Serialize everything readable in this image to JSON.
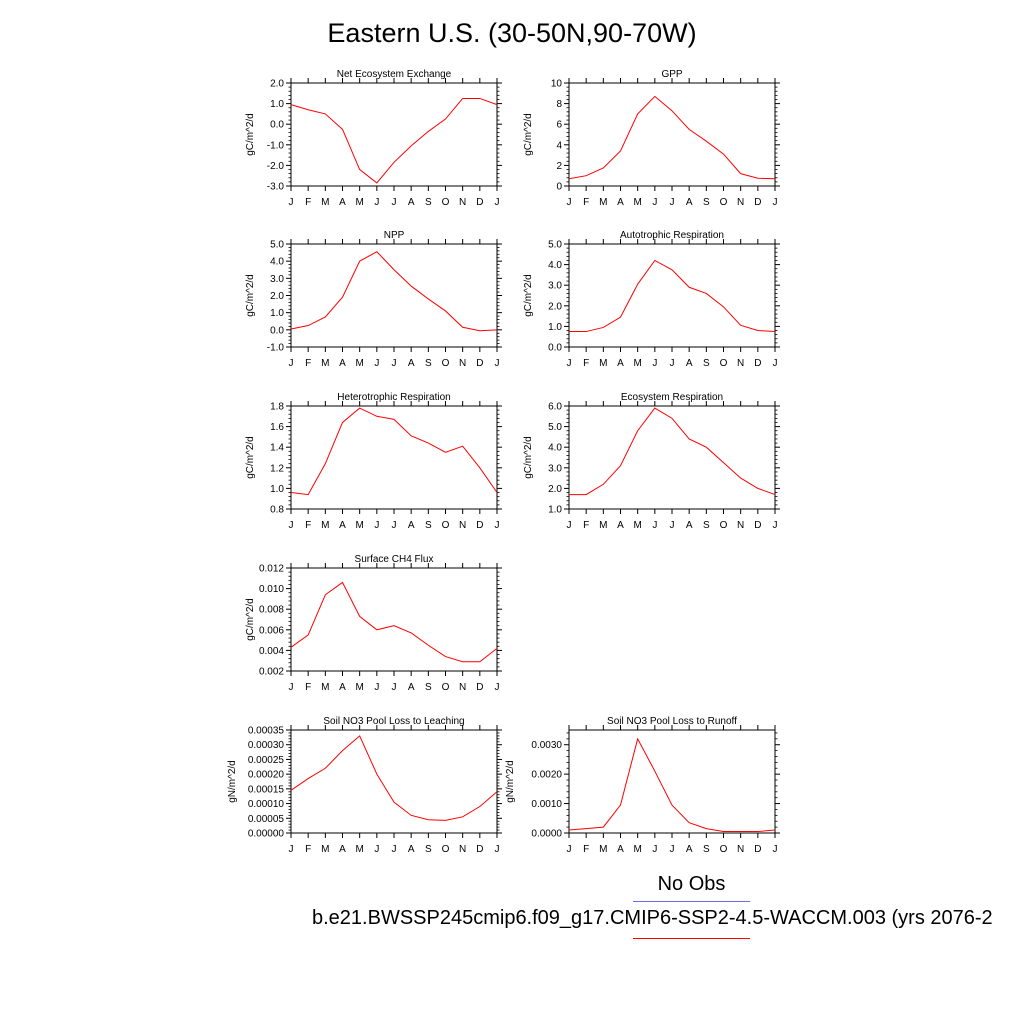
{
  "figure": {
    "title": "Eastern U.S. (30-50N,90-70W)",
    "legend": {
      "obs_label": "No Obs",
      "obs_color": "#6b6bf0",
      "model_color": "#ff0000",
      "case_label": "b.e21.BWSSP245cmip6.f09_g17.CMIP6-SSP2-4.5-WACCM.003 (yrs 2076-2"
    }
  },
  "chart_data": [
    {
      "type": "line",
      "title": "Net Ecosystem Exchange",
      "ylabel": "gC/m^2/d",
      "x": [
        "J",
        "F",
        "M",
        "A",
        "M",
        "J",
        "J",
        "A",
        "S",
        "O",
        "N",
        "D",
        "J"
      ],
      "series": [
        {
          "values": [
            0.95,
            0.7,
            0.5,
            -0.25,
            -2.2,
            -2.85,
            -1.85,
            -1.05,
            -0.35,
            0.25,
            1.25,
            1.25,
            0.95
          ]
        }
      ],
      "ylim": [
        -3.0,
        2.0
      ],
      "yticks": [
        -3.0,
        -2.0,
        -1.0,
        0.0,
        1.0,
        2.0
      ],
      "ytick_labels": [
        "-3.0",
        "-2.0",
        "-1.0",
        "0.0",
        "1.0",
        "2.0"
      ]
    },
    {
      "type": "line",
      "title": "GPP",
      "ylabel": "gC/m^2/d",
      "x": [
        "J",
        "F",
        "M",
        "A",
        "M",
        "J",
        "J",
        "A",
        "S",
        "O",
        "N",
        "D",
        "J"
      ],
      "series": [
        {
          "values": [
            0.7,
            1.0,
            1.75,
            3.4,
            7.0,
            8.7,
            7.3,
            5.5,
            4.35,
            3.1,
            1.2,
            0.75,
            0.7
          ]
        }
      ],
      "ylim": [
        0,
        10
      ],
      "yticks": [
        0,
        2,
        4,
        6,
        8,
        10
      ],
      "ytick_labels": [
        "0",
        "2",
        "4",
        "6",
        "8",
        "10"
      ]
    },
    {
      "type": "line",
      "title": "NPP",
      "ylabel": "gC/m^2/d",
      "x": [
        "J",
        "F",
        "M",
        "A",
        "M",
        "J",
        "J",
        "A",
        "S",
        "O",
        "N",
        "D",
        "J"
      ],
      "series": [
        {
          "values": [
            0.05,
            0.25,
            0.75,
            1.9,
            4.0,
            4.55,
            3.5,
            2.55,
            1.8,
            1.1,
            0.15,
            -0.05,
            0.0
          ]
        }
      ],
      "ylim": [
        -1.0,
        5.0
      ],
      "yticks": [
        -1.0,
        0.0,
        1.0,
        2.0,
        3.0,
        4.0,
        5.0
      ],
      "ytick_labels": [
        "-1.0",
        "0.0",
        "1.0",
        "2.0",
        "3.0",
        "4.0",
        "5.0"
      ]
    },
    {
      "type": "line",
      "title": "Autotrophic Respiration",
      "ylabel": "gC/m^2/d",
      "x": [
        "J",
        "F",
        "M",
        "A",
        "M",
        "J",
        "J",
        "A",
        "S",
        "O",
        "N",
        "D",
        "J"
      ],
      "series": [
        {
          "values": [
            0.75,
            0.75,
            0.95,
            1.45,
            3.05,
            4.2,
            3.75,
            2.9,
            2.6,
            1.95,
            1.05,
            0.8,
            0.75
          ]
        }
      ],
      "ylim": [
        0.0,
        5.0
      ],
      "yticks": [
        0.0,
        1.0,
        2.0,
        3.0,
        4.0,
        5.0
      ],
      "ytick_labels": [
        "0.0",
        "1.0",
        "2.0",
        "3.0",
        "4.0",
        "5.0"
      ]
    },
    {
      "type": "line",
      "title": "Heterotrophic Respiration",
      "ylabel": "gC/m^2/d",
      "x": [
        "J",
        "F",
        "M",
        "A",
        "M",
        "J",
        "J",
        "A",
        "S",
        "O",
        "N",
        "D",
        "J"
      ],
      "series": [
        {
          "values": [
            0.96,
            0.94,
            1.24,
            1.64,
            1.78,
            1.7,
            1.67,
            1.51,
            1.44,
            1.35,
            1.41,
            1.2,
            0.96
          ]
        }
      ],
      "ylim": [
        0.8,
        1.8
      ],
      "yticks": [
        0.8,
        1.0,
        1.2,
        1.4,
        1.6,
        1.8
      ],
      "ytick_labels": [
        "0.8",
        "1.0",
        "1.2",
        "1.4",
        "1.6",
        "1.8"
      ]
    },
    {
      "type": "line",
      "title": "Ecosystem Respiration",
      "ylabel": "gC/m^2/d",
      "x": [
        "J",
        "F",
        "M",
        "A",
        "M",
        "J",
        "J",
        "A",
        "S",
        "O",
        "N",
        "D",
        "J"
      ],
      "series": [
        {
          "values": [
            1.7,
            1.7,
            2.2,
            3.1,
            4.8,
            5.9,
            5.4,
            4.4,
            4.0,
            3.25,
            2.5,
            2.0,
            1.7
          ]
        }
      ],
      "ylim": [
        1.0,
        6.0
      ],
      "yticks": [
        1.0,
        2.0,
        3.0,
        4.0,
        5.0,
        6.0
      ],
      "ytick_labels": [
        "1.0",
        "2.0",
        "3.0",
        "4.0",
        "5.0",
        "6.0"
      ]
    },
    {
      "type": "line",
      "title": "Surface CH4 Flux",
      "ylabel": "gC/m^2/d",
      "x": [
        "J",
        "F",
        "M",
        "A",
        "M",
        "J",
        "J",
        "A",
        "S",
        "O",
        "N",
        "D",
        "J"
      ],
      "series": [
        {
          "values": [
            0.0043,
            0.0055,
            0.0094,
            0.0106,
            0.0073,
            0.006,
            0.0064,
            0.0057,
            0.0045,
            0.0034,
            0.0029,
            0.0029,
            0.0042
          ]
        }
      ],
      "ylim": [
        0.002,
        0.012
      ],
      "yticks": [
        0.002,
        0.004,
        0.006,
        0.008,
        0.01,
        0.012
      ],
      "ytick_labels": [
        "0.002",
        "0.004",
        "0.006",
        "0.008",
        "0.010",
        "0.012"
      ]
    },
    {
      "type": "line",
      "title": "Soil NO3 Pool Loss to Leaching",
      "ylabel": "gN/m^2/d",
      "x": [
        "J",
        "F",
        "M",
        "A",
        "M",
        "J",
        "J",
        "A",
        "S",
        "O",
        "N",
        "D",
        "J"
      ],
      "series": [
        {
          "values": [
            0.000145,
            0.000185,
            0.00022,
            0.00028,
            0.00033,
            0.0002,
            0.000105,
            6e-05,
            4.5e-05,
            4.3e-05,
            5.5e-05,
            9e-05,
            0.00014
          ]
        }
      ],
      "ylim": [
        0,
        0.00035
      ],
      "yticks": [
        0,
        5e-05,
        0.0001,
        0.00015,
        0.0002,
        0.00025,
        0.0003,
        0.00035
      ],
      "ytick_labels": [
        "0.00000",
        "0.00005",
        "0.00010",
        "0.00015",
        "0.00020",
        "0.00025",
        "0.00030",
        "0.00035"
      ]
    },
    {
      "type": "line",
      "title": "Soil NO3 Pool Loss to Runoff",
      "ylabel": "gN/m^2/d",
      "x": [
        "J",
        "F",
        "M",
        "A",
        "M",
        "J",
        "J",
        "A",
        "S",
        "O",
        "N",
        "D",
        "J"
      ],
      "series": [
        {
          "values": [
            0.0001,
            0.00015,
            0.0002,
            0.00095,
            0.0032,
            0.0021,
            0.00095,
            0.00035,
            0.00015,
            5e-05,
            5e-05,
            5e-05,
            0.0001
          ]
        }
      ],
      "ylim": [
        0,
        0.0035
      ],
      "yticks": [
        0,
        0.001,
        0.002,
        0.003
      ],
      "ytick_labels": [
        "0.0000",
        "0.0010",
        "0.0020",
        "0.0030"
      ]
    }
  ]
}
